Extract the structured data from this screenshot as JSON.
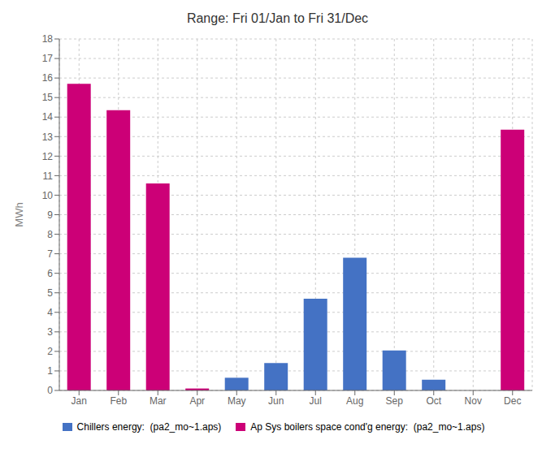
{
  "chart_data": {
    "type": "bar",
    "title": "Range: Fri 01/Jan to Fri 31/Dec",
    "y_label": "MWh",
    "categories": [
      "Jan",
      "Feb",
      "Mar",
      "Apr",
      "May",
      "Jun",
      "Jul",
      "Aug",
      "Sep",
      "Oct",
      "Nov",
      "Dec"
    ],
    "series": [
      {
        "name": "Chillers energy:  (pa2_mo~1.aps)",
        "color": "#4472C4",
        "values": [
          0,
          0,
          0,
          0,
          0.65,
          1.4,
          4.7,
          6.8,
          2.05,
          0.55,
          0,
          0
        ]
      },
      {
        "name": "Ap Sys boilers space cond'g energy:  (pa2_mo~1.aps)",
        "color": "#CC0077",
        "values": [
          15.7,
          14.35,
          10.6,
          0.1,
          0,
          0,
          0,
          0,
          0,
          0,
          0,
          13.35
        ]
      }
    ],
    "ylim": [
      0,
      18
    ],
    "yticks": [
      0,
      1,
      2,
      3,
      4,
      5,
      6,
      7,
      8,
      9,
      10,
      11,
      12,
      13,
      14,
      15,
      16,
      17,
      18
    ],
    "grid": true,
    "legend": "bottom"
  }
}
